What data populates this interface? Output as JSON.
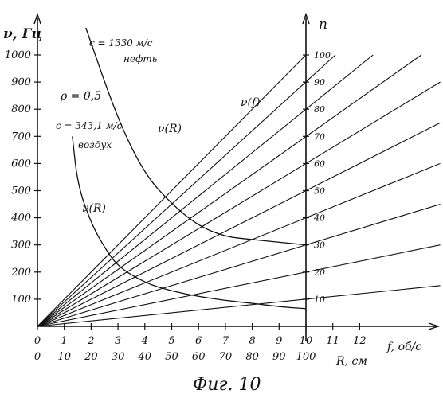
{
  "chart_data": {
    "type": "line",
    "caption": "Фиг. 10",
    "y_left_label": "ν, Гц",
    "y_left_ticks": [
      100,
      200,
      300,
      400,
      500,
      600,
      700,
      800,
      900,
      1000
    ],
    "y_right_label": "n",
    "y_right_ticks": [
      10,
      20,
      30,
      40,
      50,
      60,
      70,
      80,
      90,
      100
    ],
    "x_f_label": "f, об/c",
    "x_f_ticks": [
      0,
      1,
      2,
      3,
      4,
      5,
      6,
      7,
      8,
      9,
      10,
      11,
      12
    ],
    "x_r_label": "R, см",
    "x_r_ticks": [
      0,
      10,
      20,
      30,
      40,
      50,
      60,
      70,
      80,
      90,
      100
    ],
    "xlim_f": [
      0,
      15
    ],
    "ylim_nu": [
      0,
      1000
    ],
    "annotations": {
      "rho": "ρ = 0,5",
      "c_oil": "c = 1330 м/с",
      "oil": "нефть",
      "c_air": "c = 343,1 м/с",
      "air": "воздух",
      "nu_f": "ν(f)",
      "nu_r_oil": "ν(R)",
      "nu_r_air": "ν(R)"
    },
    "series": [
      {
        "kind": "nu_of_f",
        "n": 10,
        "x": [
          0,
          15
        ],
        "y": [
          0,
          150
        ]
      },
      {
        "kind": "nu_of_f",
        "n": 20,
        "x": [
          0,
          15
        ],
        "y": [
          0,
          300
        ]
      },
      {
        "kind": "nu_of_f",
        "n": 30,
        "x": [
          0,
          15
        ],
        "y": [
          0,
          450
        ]
      },
      {
        "kind": "nu_of_f",
        "n": 40,
        "x": [
          0,
          15
        ],
        "y": [
          0,
          600
        ]
      },
      {
        "kind": "nu_of_f",
        "n": 50,
        "x": [
          0,
          15
        ],
        "y": [
          0,
          750
        ]
      },
      {
        "kind": "nu_of_f",
        "n": 60,
        "x": [
          0,
          15
        ],
        "y": [
          0,
          900
        ]
      },
      {
        "kind": "nu_of_f",
        "n": 70,
        "x": [
          0,
          14.3
        ],
        "y": [
          0,
          1000
        ]
      },
      {
        "kind": "nu_of_f",
        "n": 80,
        "x": [
          0,
          12.5
        ],
        "y": [
          0,
          1000
        ]
      },
      {
        "kind": "nu_of_f",
        "n": 90,
        "x": [
          0,
          11.1
        ],
        "y": [
          0,
          1000
        ]
      },
      {
        "kind": "nu_of_f",
        "n": 100,
        "x": [
          0,
          10
        ],
        "y": [
          0,
          1000
        ]
      },
      {
        "kind": "nu_of_R",
        "medium": "oil",
        "x": [
          1.8,
          3.0,
          4.0,
          5.0,
          6.0,
          7.0,
          8.0,
          9.0,
          10.0
        ],
        "y": [
          1100,
          760,
          560,
          450,
          370,
          330,
          320,
          310,
          300
        ]
      },
      {
        "kind": "nu_of_R",
        "medium": "air",
        "x": [
          1.3,
          1.5,
          2.0,
          2.5,
          3.0,
          4.0,
          5.0,
          6.0,
          7.0,
          8.0,
          9.0,
          10.0
        ],
        "y": [
          700,
          520,
          380,
          290,
          220,
          160,
          130,
          110,
          95,
          85,
          72,
          65
        ]
      }
    ]
  }
}
